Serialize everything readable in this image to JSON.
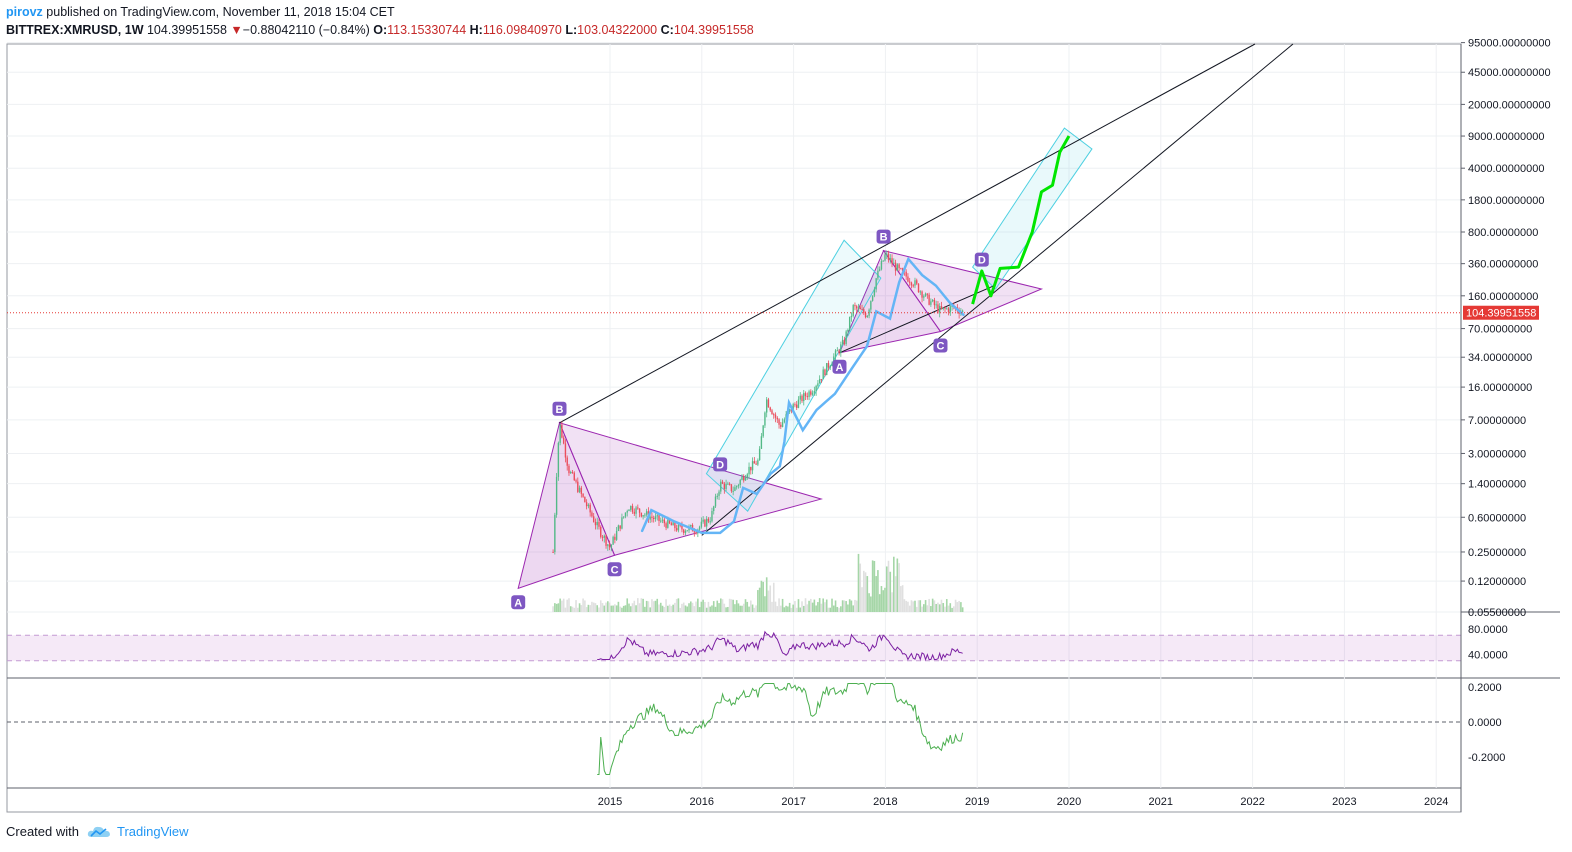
{
  "header": {
    "author": "pirovz",
    "published_text": "published on TradingView.com, November 11, 2018 15:04 CET",
    "symbol": "BITTREX:XMRUSD, 1W",
    "last": "104.39951558",
    "change": "−0.88042110 (−0.84%)",
    "o_label": "O:",
    "o_value": "113.15330744",
    "h_label": "H:",
    "h_value": "116.09840970",
    "l_label": "L:",
    "l_value": "103.04322000",
    "c_label": "C:",
    "c_value": "104.39951558"
  },
  "footer": {
    "created_with": "Created with",
    "brand": "TradingView"
  },
  "colors": {
    "candle_up": "#53b987",
    "candle_down": "#eb4d5c",
    "triangle": "#9c27b0",
    "channel": "#4dd0e1",
    "ma": "#64b5f6",
    "forecast": "#00e600",
    "rsi": "#7b1fa2",
    "osc": "#4caf50",
    "price_line": "#e53935",
    "label_bg": "#7e57c2"
  },
  "chart_data": {
    "type": "candlestick",
    "price_scale": "log",
    "price_axis_ticks": [
      "95000.00000000",
      "45000.00000000",
      "20000.00000000",
      "9000.00000000",
      "4000.00000000",
      "1800.00000000",
      "800.00000000",
      "360.00000000",
      "160.00000000",
      "70.00000000",
      "34.00000000",
      "16.00000000",
      "7.00000000",
      "3.00000000",
      "1.40000000",
      "0.60000000",
      "0.25000000",
      "0.12000000",
      "0.05500000"
    ],
    "time_axis_ticks": [
      "2015",
      "2016",
      "2017",
      "2018",
      "2019",
      "2020",
      "2021",
      "2022",
      "2023",
      "2024"
    ],
    "last_price_label": "104.39951558",
    "close_path": [
      {
        "t": 2014.38,
        "p": 0.25
      },
      {
        "t": 2014.42,
        "p": 2.0
      },
      {
        "t": 2014.45,
        "p": 6.5
      },
      {
        "t": 2014.55,
        "p": 2.0
      },
      {
        "t": 2014.7,
        "p": 1.0
      },
      {
        "t": 2014.85,
        "p": 0.5
      },
      {
        "t": 2015.0,
        "p": 0.28
      },
      {
        "t": 2015.2,
        "p": 0.8
      },
      {
        "t": 2015.45,
        "p": 0.6
      },
      {
        "t": 2015.75,
        "p": 0.45
      },
      {
        "t": 2015.95,
        "p": 0.45
      },
      {
        "t": 2016.1,
        "p": 0.6
      },
      {
        "t": 2016.2,
        "p": 1.4
      },
      {
        "t": 2016.35,
        "p": 1.2
      },
      {
        "t": 2016.5,
        "p": 2.0
      },
      {
        "t": 2016.62,
        "p": 2.5
      },
      {
        "t": 2016.7,
        "p": 12.0
      },
      {
        "t": 2016.85,
        "p": 6.0
      },
      {
        "t": 2017.0,
        "p": 10.0
      },
      {
        "t": 2017.2,
        "p": 15.0
      },
      {
        "t": 2017.4,
        "p": 30.0
      },
      {
        "t": 2017.55,
        "p": 50.0
      },
      {
        "t": 2017.65,
        "p": 120.0
      },
      {
        "t": 2017.8,
        "p": 100.0
      },
      {
        "t": 2017.9,
        "p": 250.0
      },
      {
        "t": 2018.0,
        "p": 450.0
      },
      {
        "t": 2018.15,
        "p": 300.0
      },
      {
        "t": 2018.3,
        "p": 230.0
      },
      {
        "t": 2018.45,
        "p": 150.0
      },
      {
        "t": 2018.6,
        "p": 110.0
      },
      {
        "t": 2018.75,
        "p": 120.0
      },
      {
        "t": 2018.86,
        "p": 104.4
      }
    ],
    "patterns": [
      {
        "name": "ABCD triangle 2014",
        "points": [
          {
            "label": "A",
            "t": 2014.0,
            "p": 0.1
          },
          {
            "label": "B",
            "t": 2014.45,
            "p": 6.5
          },
          {
            "label": "C",
            "t": 2015.05,
            "p": 0.23
          },
          {
            "label": "D",
            "t": 2016.2,
            "p": 1.6
          }
        ]
      },
      {
        "name": "ABCD triangle 2017",
        "points": [
          {
            "label": "A",
            "t": 2017.5,
            "p": 38.0
          },
          {
            "label": "B",
            "t": 2017.98,
            "p": 500.0
          },
          {
            "label": "C",
            "t": 2018.6,
            "p": 65.0
          },
          {
            "label": "D",
            "t": 2019.05,
            "p": 280.0
          }
        ]
      }
    ],
    "rsi_ticks": [
      "80.0000",
      "40.0000"
    ],
    "rsi_band": [
      30,
      70
    ],
    "osc_ticks": [
      "0.2000",
      "0.0000",
      "-0.2000"
    ]
  }
}
